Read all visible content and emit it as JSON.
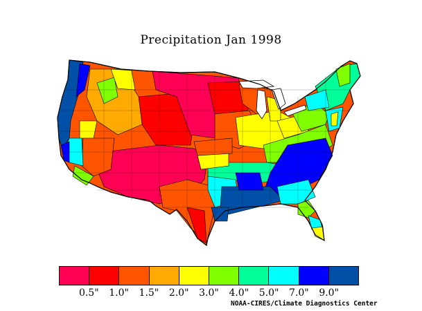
{
  "title": "Precipitation Jan 1998",
  "credit": "NOAA-CIRES/Climate Diagnostics Center",
  "legend": {
    "colors": [
      "#ff0055",
      "#ff0000",
      "#ff5500",
      "#ffaa00",
      "#ffff00",
      "#7fff00",
      "#00ff99",
      "#00ffff",
      "#0000ff",
      "#0050a8"
    ],
    "labels": [
      "0.5\"",
      "1.0\"",
      "1.5\"",
      "2.0\"",
      "3.0\"",
      "4.0\"",
      "5.0\"",
      "7.0\"",
      "9.0\""
    ]
  },
  "map": {
    "description_colors": {
      "dry": "#ff0055",
      "low": "#ff0000",
      "mid_low": "#ff5500",
      "mid": "#ffaa00",
      "moderate": "#ffff00",
      "wet1": "#7fff00",
      "wet2": "#00ff99",
      "wet3": "#00ffff",
      "very_wet": "#0000ff",
      "wettest": "#0050a8"
    }
  }
}
